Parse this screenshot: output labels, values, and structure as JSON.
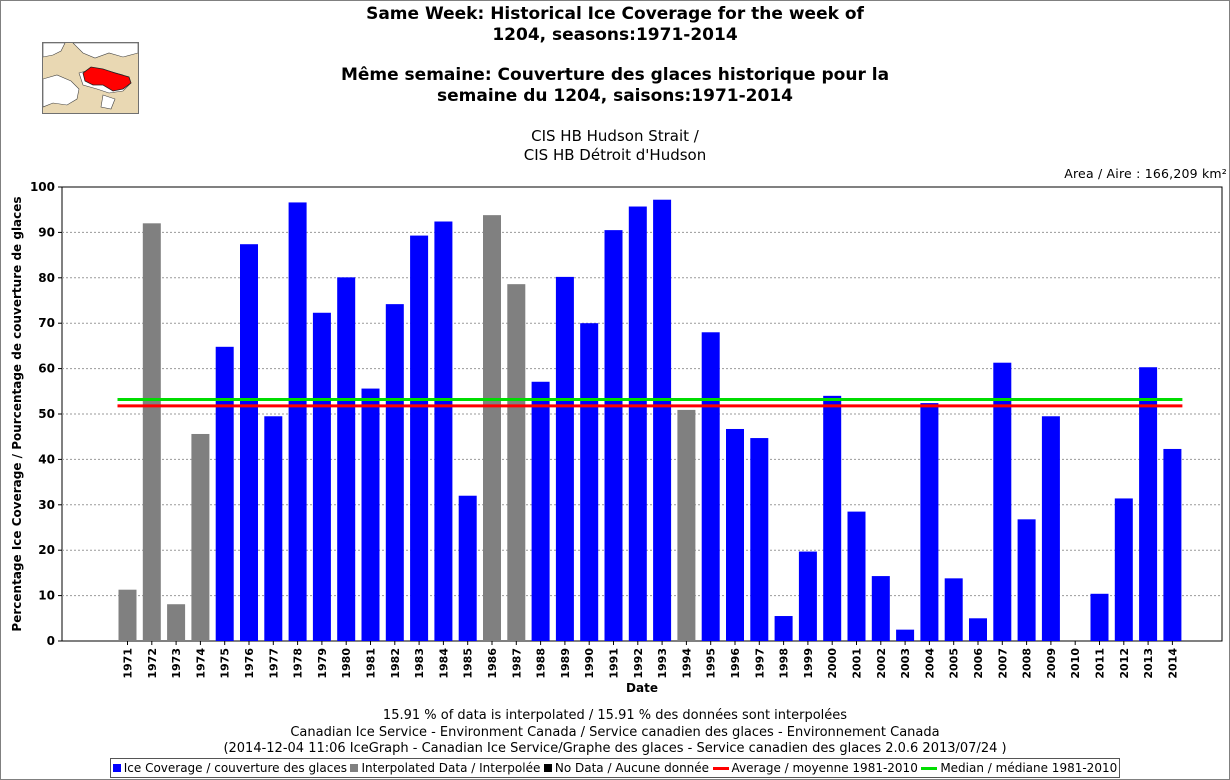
{
  "title_en": "Same Week: Historical Ice Coverage for the week of",
  "title_en_2": "1204, seasons:1971-2014",
  "title_fr": "Même semaine: Couverture des glaces historique pour la",
  "title_fr_2": "semaine du 1204, saisons:1971-2014",
  "subtitle_1": "CIS HB Hudson Strait /",
  "subtitle_2": "CIS HB Détroit d'Hudson",
  "area_label": "Area / Aire : 166,209 km²",
  "footer": {
    "line1": "15.91 % of data is interpolated / 15.91 % des données sont interpolées",
    "line2": "Canadian Ice Service - Environment Canada / Service canadien des glaces - Environnement Canada",
    "line3": "(2014-12-04 11:06 IceGraph - Canadian Ice Service/Graphe des glaces - Service canadien des glaces 2.0.6 2013/07/24 )"
  },
  "legend": [
    {
      "label": "Ice Coverage / couverture des glaces",
      "color": "#0000ff",
      "kind": "box"
    },
    {
      "label": "Interpolated Data / Interpolée",
      "color": "#808080",
      "kind": "box"
    },
    {
      "label": "No Data / Aucune donnée",
      "color": "#000000",
      "kind": "box"
    },
    {
      "label": "Average / moyenne 1981-2010",
      "color": "#ff0000",
      "kind": "line"
    },
    {
      "label": "Median / médiane 1981-2010",
      "color": "#00dd00",
      "kind": "line"
    }
  ],
  "chart_data": {
    "type": "bar",
    "xlabel": "Date",
    "ylabel": "Percentage Ice Coverage / Pourcentage de couverture de glaces",
    "ylim": [
      0,
      100
    ],
    "yticks": [
      0,
      10,
      20,
      30,
      40,
      50,
      60,
      70,
      80,
      90,
      100
    ],
    "grid": true,
    "categories": [
      "1971",
      "1972",
      "1973",
      "1974",
      "1975",
      "1976",
      "1977",
      "1978",
      "1979",
      "1980",
      "1981",
      "1982",
      "1983",
      "1984",
      "1985",
      "1986",
      "1987",
      "1988",
      "1989",
      "1990",
      "1991",
      "1992",
      "1993",
      "1994",
      "1995",
      "1996",
      "1997",
      "1998",
      "1999",
      "2000",
      "2001",
      "2002",
      "2003",
      "2004",
      "2005",
      "2006",
      "2007",
      "2008",
      "2009",
      "2010",
      "2011",
      "2012",
      "2013",
      "2014"
    ],
    "values": [
      11.3,
      92.0,
      8.1,
      45.6,
      64.8,
      87.4,
      49.5,
      96.6,
      72.3,
      80.1,
      55.6,
      74.2,
      89.3,
      92.4,
      32.0,
      93.8,
      78.6,
      57.1,
      80.2,
      70.0,
      90.5,
      95.7,
      97.2,
      50.9,
      68.0,
      46.7,
      44.7,
      5.5,
      19.7,
      54.0,
      28.5,
      14.3,
      2.5,
      52.4,
      13.8,
      5.0,
      61.3,
      26.8,
      49.5,
      0,
      10.4,
      31.4,
      60.3,
      42.3
    ],
    "status": [
      "interpolated",
      "interpolated",
      "interpolated",
      "interpolated",
      "ice",
      "ice",
      "ice",
      "ice",
      "ice",
      "ice",
      "ice",
      "ice",
      "ice",
      "ice",
      "ice",
      "interpolated",
      "interpolated",
      "ice",
      "ice",
      "ice",
      "ice",
      "ice",
      "ice",
      "interpolated",
      "ice",
      "ice",
      "ice",
      "ice",
      "ice",
      "ice",
      "ice",
      "ice",
      "ice",
      "ice",
      "ice",
      "ice",
      "ice",
      "ice",
      "ice",
      "ice",
      "ice",
      "ice",
      "ice",
      "ice"
    ],
    "status_colors": {
      "ice": "#0000ff",
      "interpolated": "#808080",
      "nodata": "#000000"
    },
    "average": 51.8,
    "median": 53.2,
    "average_color": "#ff0000",
    "median_color": "#00dd00"
  }
}
